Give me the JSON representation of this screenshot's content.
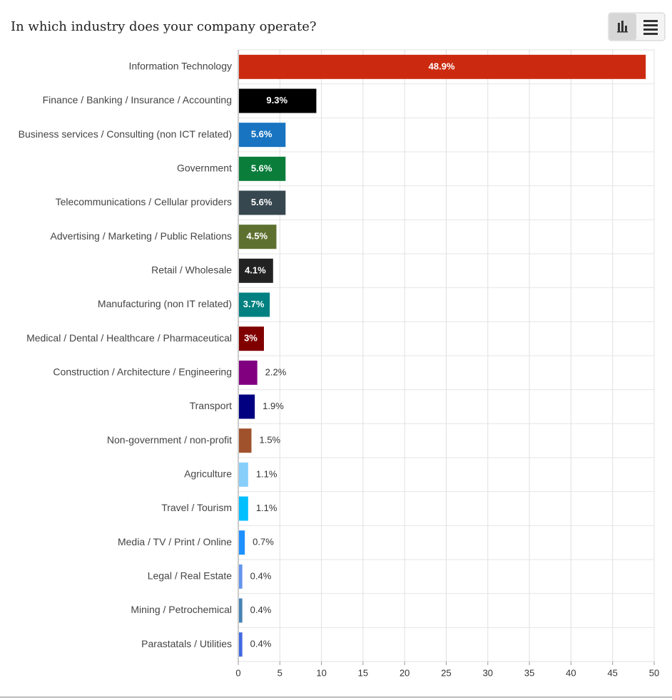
{
  "chart_data": {
    "type": "bar",
    "orientation": "horizontal",
    "title": "In which industry does your company operate?",
    "categories": [
      "Information Technology",
      "Finance / Banking / Insurance / Accounting",
      "Business services / Consulting (non ICT related)",
      "Government",
      "Telecommunications / Cellular providers",
      "Advertising / Marketing / Public Relations",
      "Retail / Wholesale",
      "Manufacturing (non IT related)",
      "Medical / Dental / Healthcare / Pharmaceutical",
      "Construction / Architecture / Engineering",
      "Transport",
      "Non-government / non-profit",
      "Agriculture",
      "Travel / Tourism",
      "Media / TV / Print / Online",
      "Legal / Real Estate",
      "Mining / Petrochemical",
      "Parastatals / Utilities"
    ],
    "values": [
      48.9,
      9.3,
      5.6,
      5.6,
      5.6,
      4.5,
      4.1,
      3.7,
      3,
      2.2,
      1.9,
      1.5,
      1.1,
      1.1,
      0.7,
      0.4,
      0.4,
      0.4
    ],
    "value_labels": [
      "48.9%",
      "9.3%",
      "5.6%",
      "5.6%",
      "5.6%",
      "4.5%",
      "4.1%",
      "3.7%",
      "3%",
      "2.2%",
      "1.9%",
      "1.5%",
      "1.1%",
      "1.1%",
      "0.7%",
      "0.4%",
      "0.4%",
      "0.4%"
    ],
    "colors": [
      "#cc2a10",
      "#000000",
      "#1874c1",
      "#0a7d3a",
      "#37474f",
      "#5e7030",
      "#222222",
      "#008080",
      "#800000",
      "#800080",
      "#000080",
      "#a0522d",
      "#87cefa",
      "#00bfff",
      "#1e90ff",
      "#6495ed",
      "#4682b4",
      "#4169e1"
    ],
    "xlim": [
      0,
      50
    ],
    "xticks": [
      0,
      5,
      10,
      15,
      20,
      25,
      30,
      35,
      40,
      45,
      50
    ],
    "grid": true
  }
}
